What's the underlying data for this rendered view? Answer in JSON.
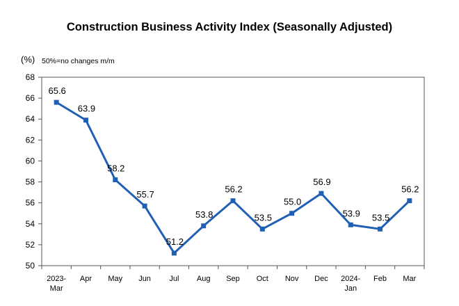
{
  "chart_data": {
    "type": "line",
    "title": "Construction Business Activity Index (Seasonally Adjusted)",
    "unit_label": "(%)",
    "annotation": "50%=no changes m/m",
    "categories": [
      [
        "2023-",
        "Mar"
      ],
      [
        "Apr"
      ],
      [
        "May"
      ],
      [
        "Jun"
      ],
      [
        "Jul"
      ],
      [
        "Aug"
      ],
      [
        "Sep"
      ],
      [
        "Oct"
      ],
      [
        "Nov"
      ],
      [
        "Dec"
      ],
      [
        "2024-",
        "Jan"
      ],
      [
        "Feb"
      ],
      [
        "Mar"
      ]
    ],
    "series": [
      {
        "values": [
          65.6,
          63.9,
          58.2,
          55.7,
          51.2,
          53.8,
          56.2,
          53.5,
          55.0,
          56.9,
          53.9,
          53.5,
          56.2
        ]
      }
    ],
    "value_labels": [
      "65.6",
      "63.9",
      "58.2",
      "55.7",
      "51.2",
      "53.8",
      "56.2",
      "53.5",
      "55.0",
      "56.9",
      "53.9",
      "53.5",
      "56.2"
    ],
    "ylim": [
      50,
      68
    ],
    "yticks": [
      50,
      52,
      54,
      56,
      58,
      60,
      62,
      64,
      66,
      68
    ],
    "grid": false,
    "legend": "none",
    "line_color": "#1f5fb4"
  }
}
